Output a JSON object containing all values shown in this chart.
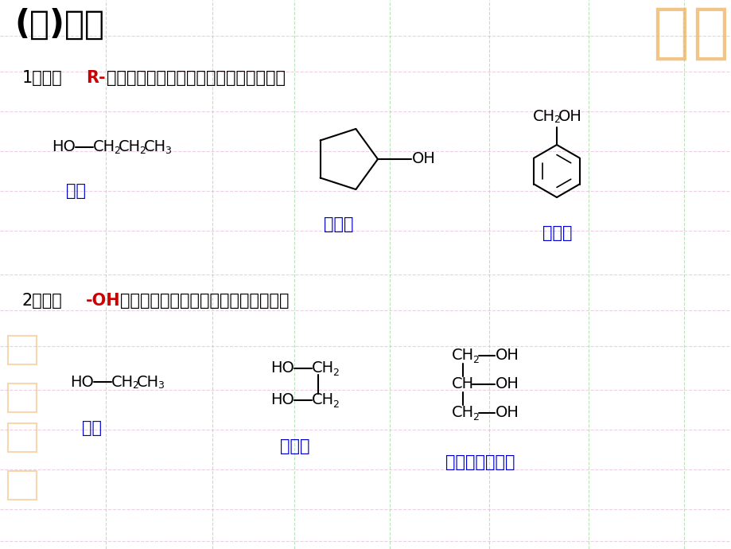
{
  "title": "(二)分类",
  "bg_color": "#ffffff",
  "text_black": "#000000",
  "text_blue": "#0000cc",
  "text_red": "#cc0000",
  "grid_color_green": "#88cc88",
  "grid_color_pink": "#ddaacc",
  "watermark_color": "#f0b060",
  "label_bingchun": "丙醇",
  "label_huanwuchun": "环戊醇",
  "label_benjiachun": "苯甲醇",
  "label_yichun": "乙醇",
  "label_yierjun": "乙二醇",
  "label_bingsanchun": "丙三醇（甘油）",
  "line1_p1": "1、根据",
  "line1_red": "R-",
  "line1_p2": "的不同可分为：脂肪醇、脂环醇、芳香醇",
  "line2_p1": "2、根据",
  "line2_red": "-OH",
  "line2_p2": "的数目分为：一元醇、二元醇、多元醇"
}
